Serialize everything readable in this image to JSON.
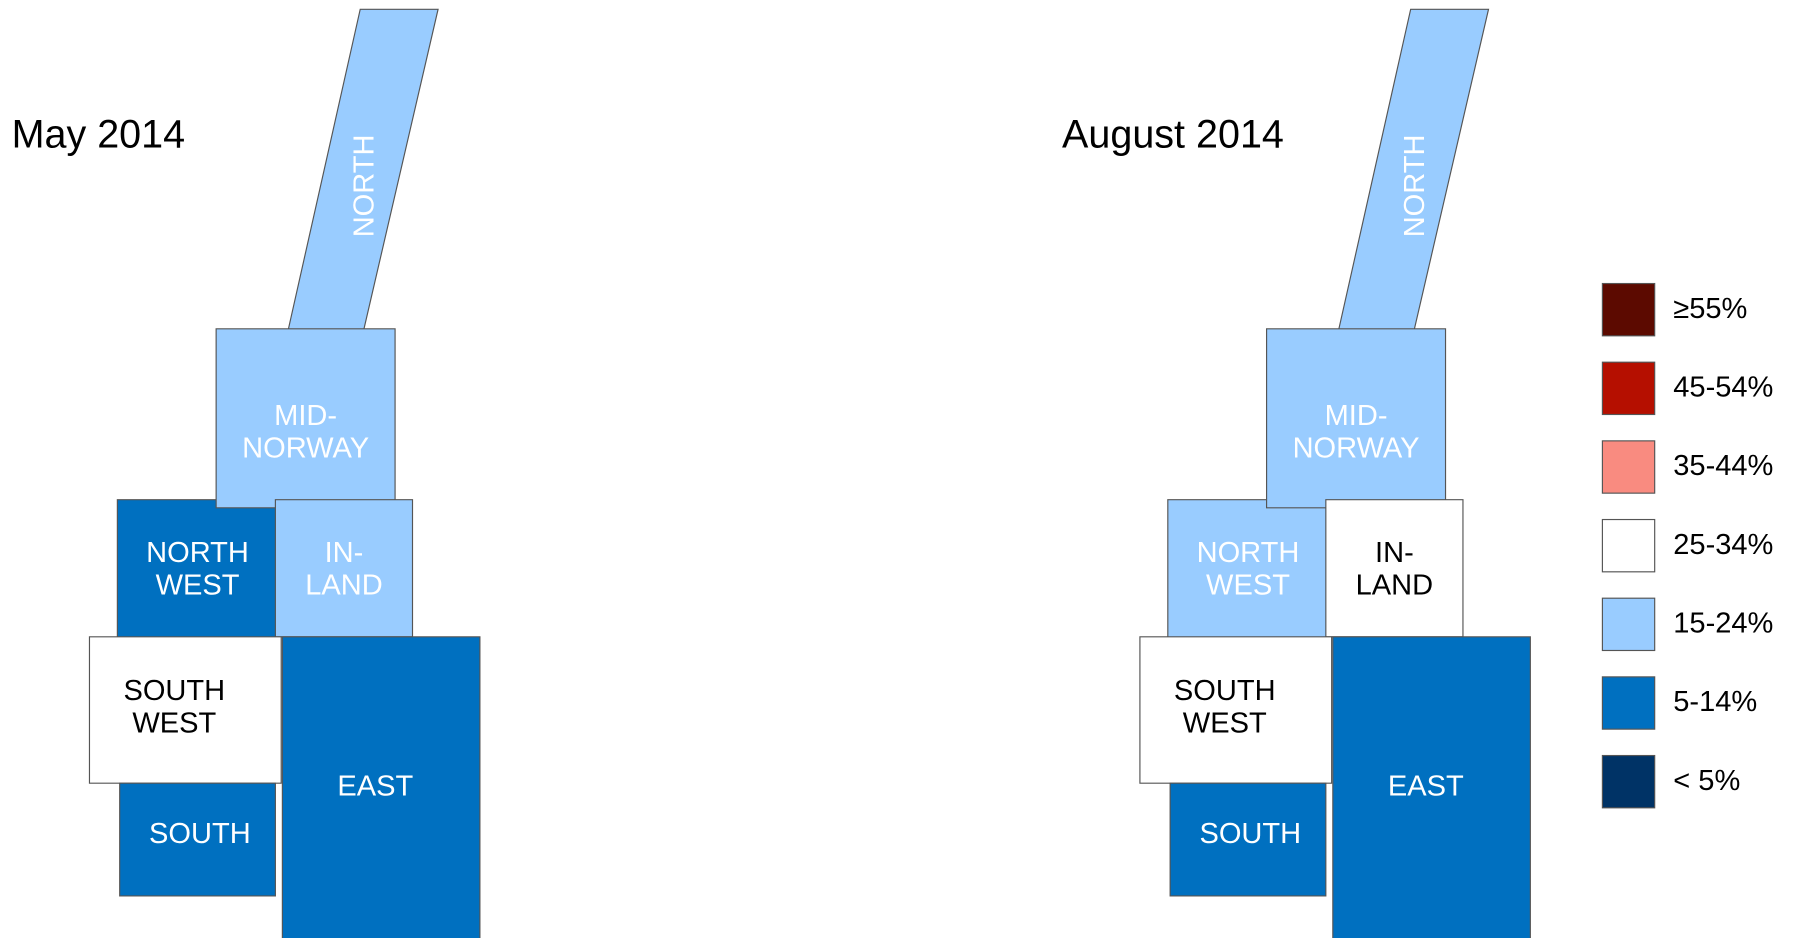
{
  "maps": [
    {
      "title": "May 2014",
      "regions": [
        {
          "label": [
            "NORTH"
          ],
          "category": 4
        },
        {
          "label": [
            "MID-",
            "NORWAY"
          ],
          "category": 4
        },
        {
          "label": [
            "NORTH",
            "WEST"
          ],
          "category": 5
        },
        {
          "label": [
            "IN-",
            "LAND"
          ],
          "category": 4
        },
        {
          "label": [
            "SOUTH",
            "WEST"
          ],
          "category": 3
        },
        {
          "label": [
            "EAST"
          ],
          "category": 5
        },
        {
          "label": [
            "SOUTH"
          ],
          "category": 5
        }
      ]
    },
    {
      "title": "August 2014",
      "regions": [
        {
          "label": [
            "NORTH"
          ],
          "category": 4
        },
        {
          "label": [
            "MID-",
            "NORWAY"
          ],
          "category": 4
        },
        {
          "label": [
            "NORTH",
            "WEST"
          ],
          "category": 4
        },
        {
          "label": [
            "IN-",
            "LAND"
          ],
          "category": 3
        },
        {
          "label": [
            "SOUTH",
            "WEST"
          ],
          "category": 3
        },
        {
          "label": [
            "EAST"
          ],
          "category": 5
        },
        {
          "label": [
            "SOUTH"
          ],
          "category": 5
        }
      ]
    }
  ],
  "legend": [
    {
      "label": "≥55%",
      "color": "#5c0a00"
    },
    {
      "label": "45-54%",
      "color": "#b50f00"
    },
    {
      "label": "35-44%",
      "color": "#f98b80"
    },
    {
      "label": "25-34%",
      "color": "#ffffff"
    },
    {
      "label": "15-24%",
      "color": "#99ccff"
    },
    {
      "label": "5-14%",
      "color": "#0070c0"
    },
    {
      "label": "< 5%",
      "color": "#003366"
    }
  ]
}
